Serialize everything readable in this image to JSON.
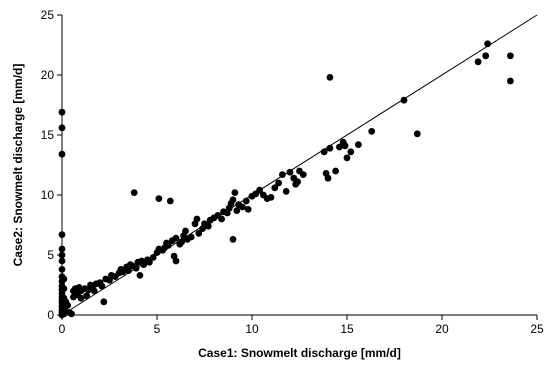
{
  "chart_data": {
    "type": "scatter",
    "title": "",
    "xlabel": "Case1: Snowmelt discharge [mm/d]",
    "ylabel": "Case2: Snowmelt discharge [mm/d]",
    "xlim": [
      0,
      25
    ],
    "ylim": [
      0,
      25
    ],
    "xticks": [
      "0",
      "5",
      "10",
      "15",
      "20",
      "25"
    ],
    "yticks": [
      "0",
      "5",
      "10",
      "15",
      "20",
      "25"
    ],
    "grid": false,
    "legend": "none",
    "reference_line": {
      "type": "1:1",
      "from": [
        0,
        0
      ],
      "to": [
        25,
        25
      ]
    },
    "colors": {
      "points": "#000000",
      "line": "#000000",
      "axes": "#000000"
    },
    "series": [
      {
        "points": [
          [
            0.0,
            16.9
          ],
          [
            0.0,
            15.6
          ],
          [
            0.0,
            13.4
          ],
          [
            0.0,
            6.7
          ],
          [
            0.0,
            5.5
          ],
          [
            0.0,
            5.0
          ],
          [
            0.0,
            4.5
          ],
          [
            0.0,
            3.8
          ],
          [
            0.0,
            3.2
          ],
          [
            0.0,
            2.8
          ],
          [
            0.0,
            2.4
          ],
          [
            0.0,
            2.1
          ],
          [
            0.0,
            1.8
          ],
          [
            0.0,
            1.5
          ],
          [
            0.0,
            1.2
          ],
          [
            0.0,
            1.0
          ],
          [
            0.0,
            0.7
          ],
          [
            0.0,
            0.4
          ],
          [
            0.0,
            0.2
          ],
          [
            0.0,
            0.0
          ],
          [
            0.1,
            3.0
          ],
          [
            0.1,
            2.2
          ],
          [
            0.1,
            1.4
          ],
          [
            0.1,
            0.9
          ],
          [
            0.1,
            0.5
          ],
          [
            0.1,
            0.1
          ],
          [
            0.2,
            1.1
          ],
          [
            0.2,
            0.3
          ],
          [
            0.3,
            0.8
          ],
          [
            0.4,
            0.2
          ],
          [
            0.5,
            0.1
          ],
          [
            0.6,
            2.0
          ],
          [
            0.6,
            1.5
          ],
          [
            0.7,
            2.2
          ],
          [
            0.8,
            1.7
          ],
          [
            0.9,
            2.3
          ],
          [
            1.0,
            1.4
          ],
          [
            1.0,
            2.0
          ],
          [
            1.2,
            2.2
          ],
          [
            1.3,
            1.6
          ],
          [
            1.4,
            2.1
          ],
          [
            1.5,
            2.5
          ],
          [
            1.6,
            2.3
          ],
          [
            1.7,
            2.0
          ],
          [
            1.8,
            2.6
          ],
          [
            2.0,
            2.7
          ],
          [
            2.1,
            2.4
          ],
          [
            2.2,
            1.1
          ],
          [
            2.3,
            3.0
          ],
          [
            2.5,
            2.9
          ],
          [
            2.6,
            3.3
          ],
          [
            2.8,
            3.2
          ],
          [
            3.0,
            3.5
          ],
          [
            3.1,
            3.8
          ],
          [
            3.2,
            3.6
          ],
          [
            3.4,
            4.0
          ],
          [
            3.5,
            3.7
          ],
          [
            3.6,
            4.2
          ],
          [
            3.7,
            4.1
          ],
          [
            3.8,
            10.2
          ],
          [
            3.9,
            3.9
          ],
          [
            4.0,
            4.4
          ],
          [
            4.1,
            3.3
          ],
          [
            4.2,
            4.5
          ],
          [
            4.3,
            4.2
          ],
          [
            4.5,
            4.6
          ],
          [
            4.6,
            4.4
          ],
          [
            4.8,
            4.8
          ],
          [
            5.0,
            5.2
          ],
          [
            5.1,
            5.5
          ],
          [
            5.1,
            9.7
          ],
          [
            5.3,
            5.4
          ],
          [
            5.4,
            5.6
          ],
          [
            5.5,
            6.0
          ],
          [
            5.6,
            5.8
          ],
          [
            5.7,
            9.5
          ],
          [
            5.8,
            6.2
          ],
          [
            5.9,
            4.9
          ],
          [
            6.0,
            6.4
          ],
          [
            6.0,
            4.5
          ],
          [
            6.2,
            5.9
          ],
          [
            6.3,
            6.1
          ],
          [
            6.4,
            6.6
          ],
          [
            6.5,
            7.0
          ],
          [
            6.6,
            6.3
          ],
          [
            6.8,
            6.5
          ],
          [
            7.0,
            7.6
          ],
          [
            7.1,
            8.0
          ],
          [
            7.2,
            6.8
          ],
          [
            7.4,
            7.2
          ],
          [
            7.5,
            7.6
          ],
          [
            7.7,
            7.4
          ],
          [
            7.8,
            7.9
          ],
          [
            8.0,
            8.1
          ],
          [
            8.2,
            8.3
          ],
          [
            8.4,
            8.0
          ],
          [
            8.5,
            8.6
          ],
          [
            8.7,
            8.5
          ],
          [
            8.8,
            8.9
          ],
          [
            8.9,
            9.3
          ],
          [
            9.0,
            9.6
          ],
          [
            9.0,
            6.3
          ],
          [
            9.1,
            10.2
          ],
          [
            9.2,
            8.7
          ],
          [
            9.3,
            9.2
          ],
          [
            9.5,
            9.0
          ],
          [
            9.7,
            9.5
          ],
          [
            9.8,
            8.8
          ],
          [
            10.0,
            9.9
          ],
          [
            10.2,
            10.1
          ],
          [
            10.4,
            10.4
          ],
          [
            10.6,
            10.0
          ],
          [
            10.8,
            9.7
          ],
          [
            11.0,
            9.8
          ],
          [
            11.2,
            10.6
          ],
          [
            11.4,
            11.0
          ],
          [
            11.6,
            11.7
          ],
          [
            11.8,
            10.3
          ],
          [
            12.0,
            11.9
          ],
          [
            12.2,
            11.4
          ],
          [
            12.3,
            10.9
          ],
          [
            12.4,
            11.1
          ],
          [
            12.5,
            12.0
          ],
          [
            12.7,
            11.7
          ],
          [
            13.8,
            13.6
          ],
          [
            13.9,
            11.8
          ],
          [
            14.0,
            11.4
          ],
          [
            14.1,
            13.9
          ],
          [
            14.1,
            19.8
          ],
          [
            14.4,
            12.0
          ],
          [
            14.6,
            14.0
          ],
          [
            14.8,
            14.4
          ],
          [
            14.9,
            14.1
          ],
          [
            15.0,
            13.1
          ],
          [
            15.2,
            13.6
          ],
          [
            15.6,
            14.2
          ],
          [
            16.3,
            15.3
          ],
          [
            18.0,
            17.9
          ],
          [
            18.7,
            15.1
          ],
          [
            21.9,
            21.1
          ],
          [
            22.3,
            21.6
          ],
          [
            22.4,
            22.6
          ],
          [
            23.6,
            21.6
          ],
          [
            23.6,
            19.5
          ]
        ]
      }
    ]
  }
}
